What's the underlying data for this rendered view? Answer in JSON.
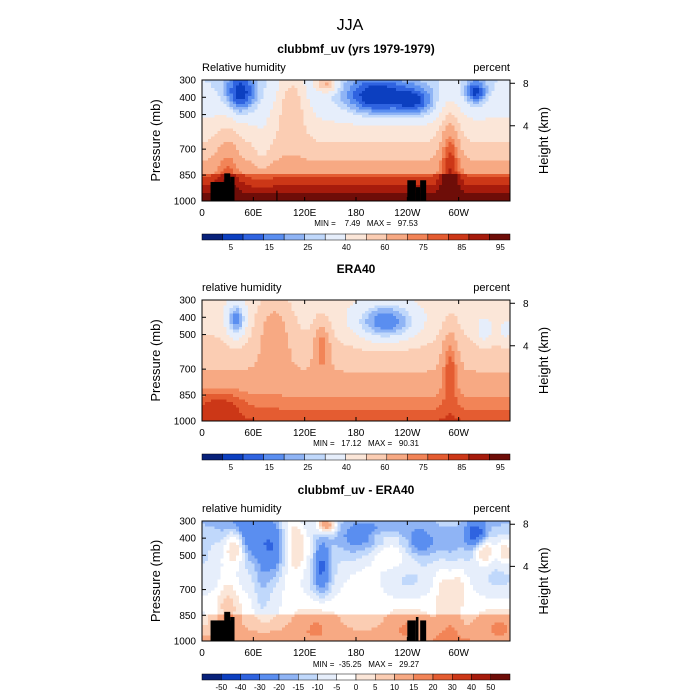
{
  "figure": {
    "title": "JJA"
  },
  "colors": {
    "rh_palette": [
      "#08217a",
      "#0c3fc0",
      "#2f63e0",
      "#5a8ef0",
      "#8fb4f5",
      "#c0d8fb",
      "#e6eefb",
      "#fbe6d8",
      "#fbcdb3",
      "#f7a983",
      "#f28457",
      "#e45c31",
      "#cc3717",
      "#a61b0c",
      "#6e0d08"
    ],
    "diff_palette": [
      "#08217a",
      "#0c3fc0",
      "#2f63e0",
      "#5a8ef0",
      "#8fb4f5",
      "#c0d8fb",
      "#e6eefb",
      "#ffffff",
      "#fbe6d8",
      "#fbcdb3",
      "#f7a983",
      "#f28457",
      "#e45c31",
      "#cc3717",
      "#a61b0c",
      "#6e0d08"
    ],
    "topography": "#000000"
  },
  "chart_data": [
    {
      "type": "heatmap",
      "title": "clubbmf_uv (yrs 1979-1979)",
      "left_label": "Relative humidity",
      "right_label": "percent",
      "ylabel": "Pressure (mb)",
      "ylabel_right": "Height (km)",
      "x_ticks": [
        "0",
        "60E",
        "120E",
        "180",
        "120W",
        "60W"
      ],
      "x_tick_lon": [
        0,
        60,
        120,
        180,
        240,
        300
      ],
      "xlim": [
        0,
        360
      ],
      "y_ticks": [
        "300",
        "400",
        "500",
        "700",
        "850",
        "1000"
      ],
      "y_tick_values": [
        300,
        400,
        500,
        700,
        850,
        1000
      ],
      "ylim": [
        300,
        1000
      ],
      "height_ticks": [
        "8",
        "4"
      ],
      "height_values": [
        8,
        4
      ],
      "stats": "MIN =    7.49   MAX =   97.53",
      "min": 7.49,
      "max": 97.53,
      "colorbar_labels": [
        "5",
        "15",
        "25",
        "40",
        "60",
        "75",
        "85",
        "95"
      ],
      "field": "model",
      "has_topography": true
    },
    {
      "type": "heatmap",
      "title": "ERA40",
      "left_label": "relative humidity",
      "right_label": "percent",
      "ylabel": "Pressure (mb)",
      "ylabel_right": "Height (km)",
      "x_ticks": [
        "0",
        "60E",
        "120E",
        "180",
        "120W",
        "60W"
      ],
      "x_tick_lon": [
        0,
        60,
        120,
        180,
        240,
        300
      ],
      "xlim": [
        0,
        360
      ],
      "y_ticks": [
        "300",
        "400",
        "500",
        "700",
        "850",
        "1000"
      ],
      "y_tick_values": [
        300,
        400,
        500,
        700,
        850,
        1000
      ],
      "ylim": [
        300,
        1000
      ],
      "height_ticks": [
        "8",
        "4"
      ],
      "height_values": [
        8,
        4
      ],
      "stats": "MIN =   17.12   MAX =   90.31",
      "min": 17.12,
      "max": 90.31,
      "colorbar_labels": [
        "5",
        "15",
        "25",
        "40",
        "60",
        "75",
        "85",
        "95"
      ],
      "field": "era40",
      "has_topography": false
    },
    {
      "type": "heatmap",
      "title": "clubbmf_uv - ERA40",
      "left_label": "relative humidity",
      "right_label": "percent",
      "ylabel": "Pressure (mb)",
      "ylabel_right": "Height (km)",
      "x_ticks": [
        "0",
        "60E",
        "120E",
        "180",
        "120W",
        "60W"
      ],
      "x_tick_lon": [
        0,
        60,
        120,
        180,
        240,
        300
      ],
      "xlim": [
        0,
        360
      ],
      "y_ticks": [
        "300",
        "400",
        "500",
        "700",
        "850",
        "1000"
      ],
      "y_tick_values": [
        300,
        400,
        500,
        700,
        850,
        1000
      ],
      "ylim": [
        300,
        1000
      ],
      "height_ticks": [
        "8",
        "4"
      ],
      "height_values": [
        8,
        4
      ],
      "stats": "MIN =  -35.25   MAX =   29.27",
      "min": -35.25,
      "max": 29.27,
      "colorbar_labels": [
        "-50",
        "-40",
        "-30",
        "-20",
        "-15",
        "-10",
        "-5",
        "0",
        "5",
        "10",
        "15",
        "20",
        "30",
        "40",
        "50"
      ],
      "field": "diff",
      "has_topography": true
    }
  ]
}
